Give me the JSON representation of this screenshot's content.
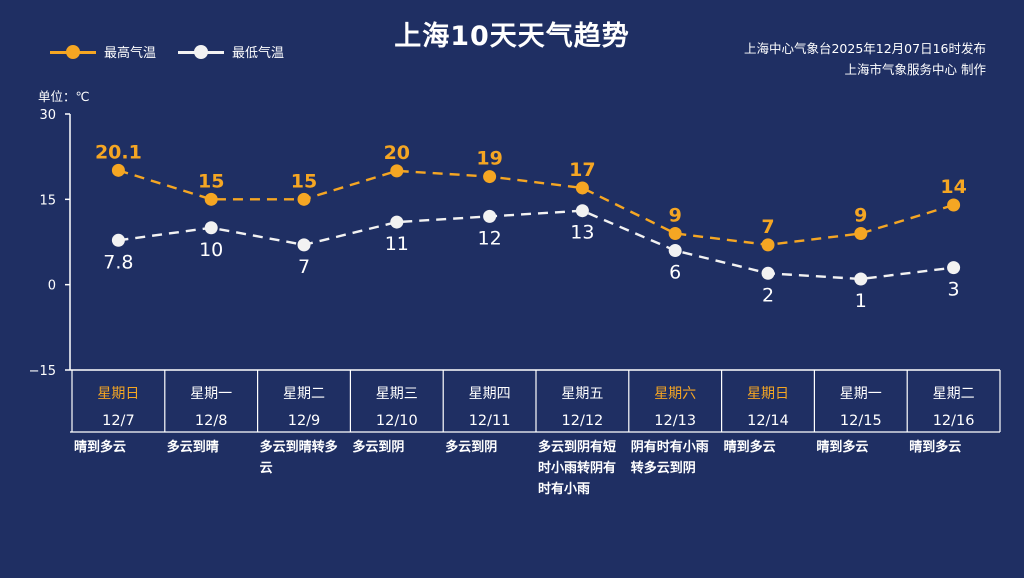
{
  "title": "上海10天天气趋势",
  "legend": {
    "high": "最高气温",
    "low": "最低气温"
  },
  "info": {
    "issued": "上海中心气象台2025年12月07日16时发布",
    "maker": "上海市气象服务中心  制作"
  },
  "unit_label": "单位：℃",
  "colors": {
    "background": "#1f2f63",
    "high": "#f5a623",
    "low": "#f2f2f2",
    "weekend": "#f5a623"
  },
  "chart_data": {
    "type": "line",
    "title": "上海10天天气趋势",
    "ylabel": "单位：℃",
    "ylim": [
      -15,
      30
    ],
    "yticks": [
      "30",
      "15",
      "0",
      "−15"
    ],
    "legend_position": "top-left",
    "categories": [
      "12/7",
      "12/8",
      "12/9",
      "12/10",
      "12/11",
      "12/12",
      "12/13",
      "12/14",
      "12/15",
      "12/16"
    ],
    "weekdays": [
      "星期日",
      "星期一",
      "星期二",
      "星期三",
      "星期四",
      "星期五",
      "星期六",
      "星期日",
      "星期一",
      "星期二"
    ],
    "weekend": [
      true,
      false,
      false,
      false,
      false,
      false,
      true,
      true,
      false,
      false
    ],
    "series": [
      {
        "name": "最高气温",
        "values": [
          20.1,
          15,
          15,
          20,
          19,
          17,
          9,
          7,
          9,
          14
        ],
        "labels": [
          "20.1",
          "15",
          "15",
          "20",
          "19",
          "17",
          "9",
          "7",
          "9",
          "14"
        ],
        "color": "#f5a623"
      },
      {
        "name": "最低气温",
        "values": [
          7.8,
          10,
          7,
          11,
          12,
          13,
          6,
          2,
          1,
          3
        ],
        "labels": [
          "7.8",
          "10",
          "7",
          "11",
          "12",
          "13",
          "6",
          "2",
          "1",
          "3"
        ],
        "color": "#f2f2f2"
      }
    ],
    "conditions": [
      "晴到多云",
      "多云到晴",
      "多云到晴转多云",
      "多云到阴",
      "多云到阴",
      "多云到阴有短时小雨转阴有时有小雨",
      "阴有时有小雨转多云到阴",
      "晴到多云",
      "晴到多云",
      "晴到多云"
    ]
  }
}
